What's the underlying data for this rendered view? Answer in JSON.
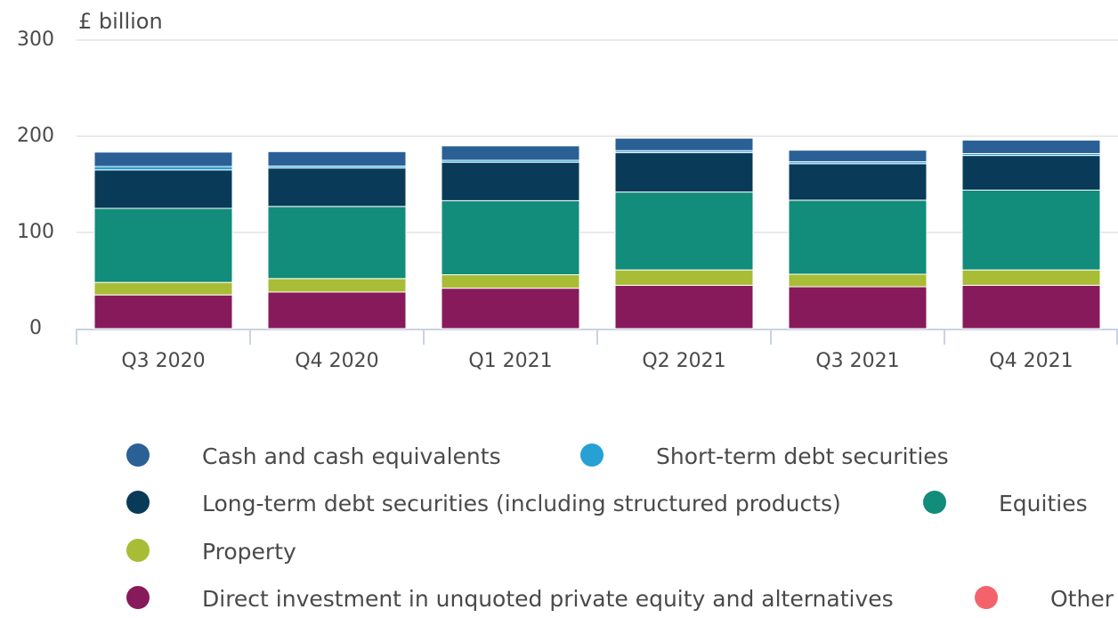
{
  "chart_data": {
    "type": "stacked_bar",
    "title": "£ billion",
    "categories": [
      "Q3 2020",
      "Q4 2020",
      "Q1 2021",
      "Q2 2021",
      "Q3 2021",
      "Q4 2021"
    ],
    "series": [
      {
        "name": "Cash and cash equivalents",
        "color": "#2a6096",
        "values": [
          15,
          15,
          15,
          13,
          12,
          14
        ]
      },
      {
        "name": "Short-term debt securities",
        "color": "#27a0d4",
        "values": [
          3.5,
          2,
          2,
          2,
          2,
          2
        ]
      },
      {
        "name": "Long-term debt securities (including structured products)",
        "color": "#093b59",
        "values": [
          40,
          40,
          40,
          41,
          38,
          36
        ]
      },
      {
        "name": "Equities",
        "color": "#128c7b",
        "values": [
          77,
          75,
          77,
          81,
          77,
          83
        ]
      },
      {
        "name": "Property",
        "color": "#a8bc36",
        "values": [
          13,
          14,
          14,
          16,
          13,
          16
        ]
      },
      {
        "name": "Direct investment in unquoted private equity and alternatives",
        "color": "#871a5a",
        "values": [
          35,
          38,
          42,
          45,
          43.5,
          45
        ]
      },
      {
        "name": "Other",
        "color": "#f4636b",
        "values": [
          0,
          0,
          0,
          0,
          0,
          0
        ]
      }
    ],
    "ylim": [
      0,
      300
    ],
    "yticks": [
      0,
      100,
      200,
      300
    ],
    "grid": true
  }
}
